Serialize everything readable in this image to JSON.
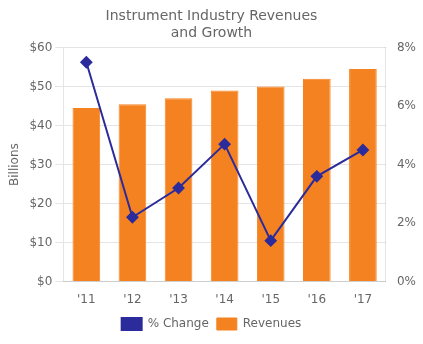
{
  "chart_data": {
    "type": "bar",
    "title": "Instrument Industry Revenues\nand Growth",
    "categories": [
      "'11",
      "'12",
      "'13",
      "'14",
      "'15",
      "'16",
      "'17"
    ],
    "series": [
      {
        "name": "Revenues",
        "type": "bar",
        "color": "#F58220",
        "values": [
          44.5,
          45.5,
          47.0,
          49.0,
          50.0,
          52.0,
          54.5
        ]
      },
      {
        "name": "% Change",
        "type": "line",
        "color": "#2B2B9B",
        "marker": "diamond",
        "axis": "y2",
        "values": [
          7.5,
          2.2,
          3.2,
          4.7,
          1.4,
          3.6,
          4.5
        ]
      }
    ],
    "ylabel": "Billions",
    "ylim": [
      0,
      60
    ],
    "yticks": [
      {
        "value": 0,
        "label": "$0"
      },
      {
        "value": 10,
        "label": "$10"
      },
      {
        "value": 20,
        "label": "$20"
      },
      {
        "value": 30,
        "label": "$30"
      },
      {
        "value": 40,
        "label": "$40"
      },
      {
        "value": 50,
        "label": "$50"
      },
      {
        "value": 60,
        "label": "$60"
      }
    ],
    "y2lim": [
      0,
      8
    ],
    "y2ticks": [
      {
        "value": 0,
        "label": "0%"
      },
      {
        "value": 2,
        "label": "2%"
      },
      {
        "value": 4,
        "label": "4%"
      },
      {
        "value": 6,
        "label": "6%"
      },
      {
        "value": 8,
        "label": "8%"
      }
    ],
    "grid": true,
    "legend": "bottom"
  }
}
